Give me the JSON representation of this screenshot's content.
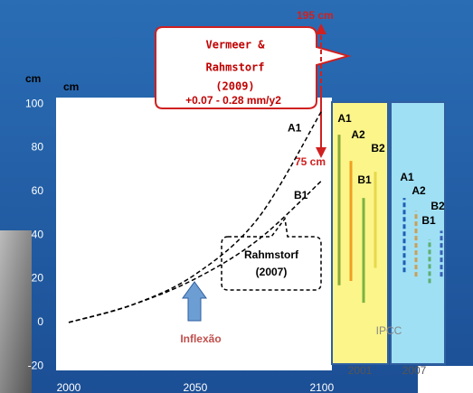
{
  "chart_data": {
    "type": "line",
    "unit_labels": [
      "cm",
      "cm"
    ],
    "x": [
      2000,
      2025,
      2050,
      2075,
      2100
    ],
    "series": [
      {
        "name": "A1",
        "color": "#000000",
        "values": [
          0,
          8,
          22,
          48,
          97
        ]
      },
      {
        "name": "B1",
        "color": "#000000",
        "values": [
          0,
          8,
          20,
          38,
          65
        ]
      }
    ],
    "xlim": [
      1995,
      2104
    ],
    "xticks": [
      2000,
      2050,
      2100
    ],
    "ylim": [
      -22,
      103
    ],
    "yticks": [
      -20,
      0,
      20,
      40,
      60,
      80,
      100
    ],
    "annotations": {
      "vermeer": [
        "Vermeer &",
        "Rahmstorf",
        "(2009)"
      ],
      "vermeer_rate": "+0.07 - 0.28 mm/y2",
      "rahmstorf": [
        "Rahmstorf",
        "(2007)"
      ],
      "top_level": "195 cm",
      "bottom_level": "75 cm",
      "inflection": "Inflexão"
    },
    "ipcc": {
      "label": "IPCC",
      "groups": [
        {
          "year": "2001",
          "bars": [
            {
              "name": "A1",
              "color": "#8aa83a",
              "range": [
                17,
                86
              ]
            },
            {
              "name": "A2",
              "color": "#f0a020",
              "range": [
                19,
                74
              ]
            },
            {
              "name": "B1",
              "color": "#7cb342",
              "range": [
                9,
                57
              ]
            },
            {
              "name": "B2",
              "color": "#e8d84a",
              "range": [
                25,
                69
              ]
            }
          ]
        },
        {
          "year": "2007",
          "bars": [
            {
              "name": "A1",
              "color": "#1f5fb5",
              "range": [
                23,
                57
              ]
            },
            {
              "name": "A2",
              "color": "#c8a05a",
              "range": [
                21,
                51
              ]
            },
            {
              "name": "B1",
              "color": "#5fae6f",
              "range": [
                18,
                38
              ]
            },
            {
              "name": "B2",
              "color": "#3a5fb5",
              "range": [
                21,
                42
              ]
            }
          ]
        }
      ]
    }
  }
}
